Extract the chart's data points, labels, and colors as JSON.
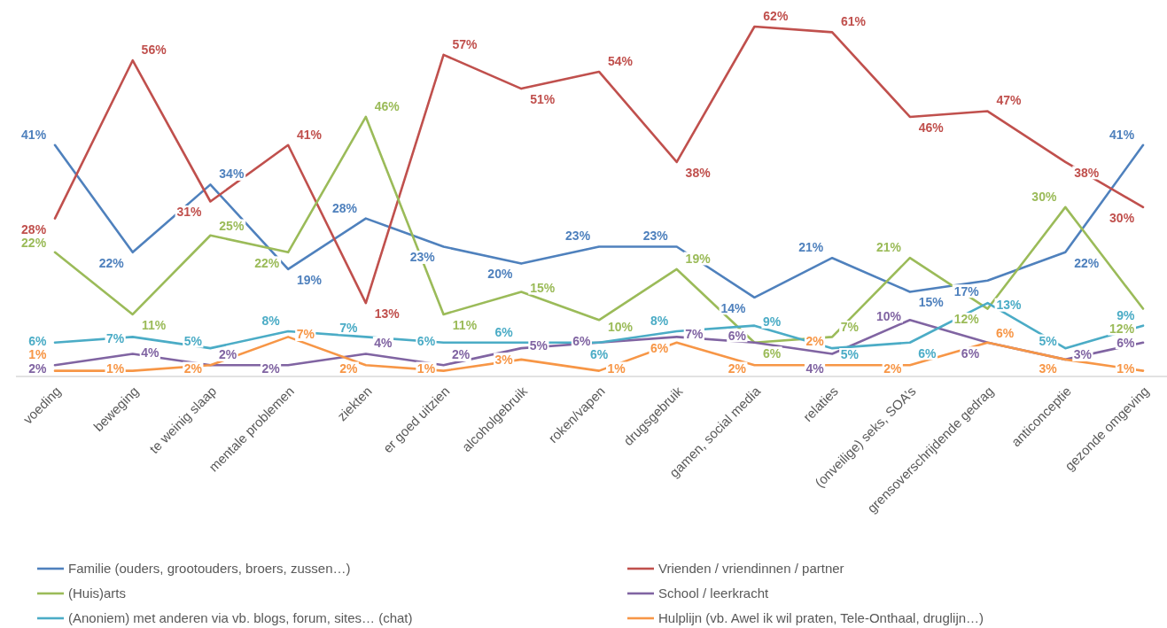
{
  "chart_data": {
    "type": "line",
    "categories": [
      "voeding",
      "beweging",
      "te weinig slaap",
      "mentale problemen",
      "ziekten",
      "er goed uitzien",
      "alcoholgebruik",
      "roken/vapen",
      "drugsgebruik",
      "gamen, social media",
      "relaties",
      "(onveilige) seks, SOA’s",
      "grensoverschrijdende gedrag",
      "anticonceptie",
      "gezonde omgeving"
    ],
    "series": [
      {
        "name": "Familie (ouders, grootouders, broers, zussen…)",
        "color": "#4f81bd",
        "values": [
          41,
          22,
          34,
          19,
          28,
          23,
          20,
          23,
          23,
          14,
          21,
          15,
          17,
          22,
          41
        ],
        "value_labels": [
          "41%",
          "22%",
          "34%",
          "19%",
          "28%",
          "23%",
          "20%",
          "23%",
          "23%",
          "14%",
          "21%",
          "15%",
          "17%",
          "22%",
          "41%"
        ]
      },
      {
        "name": "Vrienden / vriendinnen / partner",
        "color": "#c0504d",
        "values": [
          28,
          56,
          31,
          41,
          13,
          57,
          51,
          54,
          38,
          62,
          61,
          46,
          47,
          38,
          30
        ],
        "value_labels": [
          "28%",
          "56%",
          "31%",
          "41%",
          "13%",
          "57%",
          "51%",
          "54%",
          "38%",
          "62%",
          "61%",
          "46%",
          "47%",
          "38%",
          "30%"
        ]
      },
      {
        "name": "(Huis)arts",
        "color": "#9bbb59",
        "values": [
          22,
          11,
          25,
          22,
          46,
          11,
          15,
          10,
          19,
          6,
          7,
          21,
          12,
          30,
          12
        ],
        "value_labels": [
          "22%",
          "11%",
          "25%",
          "22%",
          "46%",
          "11%",
          "15%",
          "10%",
          "19%",
          "6%",
          "7%",
          "21%",
          "12%",
          "30%",
          "12%"
        ]
      },
      {
        "name": "School / leerkracht",
        "color": "#8064a2",
        "values": [
          2,
          4,
          2,
          2,
          4,
          2,
          5,
          6,
          7,
          6,
          4,
          10,
          6,
          3,
          6
        ],
        "value_labels": [
          "2%",
          "4%",
          "2%",
          "2%",
          "4%",
          "2%",
          "5%",
          "6%",
          "7%",
          "6%",
          "4%",
          "10%",
          "6%",
          "3%",
          "6%"
        ]
      },
      {
        "name": "(Anoniem) met anderen via vb. blogs, forum, sites… (chat)",
        "color": "#4bacc6",
        "values": [
          6,
          7,
          5,
          8,
          7,
          6,
          6,
          6,
          8,
          9,
          5,
          6,
          13,
          5,
          9
        ],
        "value_labels": [
          "6%",
          "7%",
          "5%",
          "8%",
          "7%",
          "6%",
          "6%",
          "6%",
          "8%",
          "9%",
          "5%",
          "6%",
          "13%",
          "5%",
          "9%"
        ]
      },
      {
        "name": "Hulplijn (vb. Awel ik wil praten, Tele-Onthaal, druglijn…)",
        "color": "#f79646",
        "values": [
          1,
          1,
          2,
          7,
          2,
          1,
          3,
          1,
          6,
          2,
          2,
          2,
          6,
          3,
          1
        ],
        "value_labels": [
          "1%",
          "1%",
          "2%",
          "7%",
          "2%",
          "1%",
          "3%",
          "1%",
          "6%",
          "2%",
          "2%",
          "2%",
          "6%",
          "3%",
          "1%"
        ]
      }
    ],
    "legend": "bottom"
  }
}
